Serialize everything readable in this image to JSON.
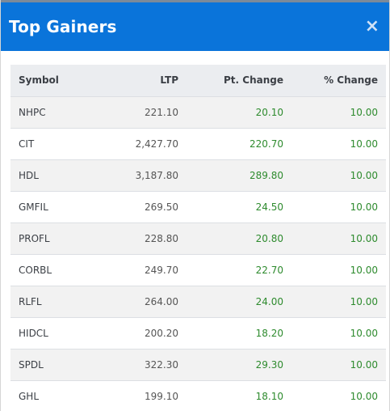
{
  "header": {
    "title": "Top Gainers",
    "close_label": "×"
  },
  "table": {
    "columns": [
      "Symbol",
      "LTP",
      "Pt. Change",
      "% Change"
    ],
    "rows": [
      {
        "symbol": "NHPC",
        "ltp": "221.10",
        "pt_change": "20.10",
        "pct_change": "10.00"
      },
      {
        "symbol": "CIT",
        "ltp": "2,427.70",
        "pt_change": "220.70",
        "pct_change": "10.00"
      },
      {
        "symbol": "HDL",
        "ltp": "3,187.80",
        "pt_change": "289.80",
        "pct_change": "10.00"
      },
      {
        "symbol": "GMFIL",
        "ltp": "269.50",
        "pt_change": "24.50",
        "pct_change": "10.00"
      },
      {
        "symbol": "PROFL",
        "ltp": "228.80",
        "pt_change": "20.80",
        "pct_change": "10.00"
      },
      {
        "symbol": "CORBL",
        "ltp": "249.70",
        "pt_change": "22.70",
        "pct_change": "10.00"
      },
      {
        "symbol": "RLFL",
        "ltp": "264.00",
        "pt_change": "24.00",
        "pct_change": "10.00"
      },
      {
        "symbol": "HIDCL",
        "ltp": "200.20",
        "pt_change": "18.20",
        "pct_change": "10.00"
      },
      {
        "symbol": "SPDL",
        "ltp": "322.30",
        "pt_change": "29.30",
        "pct_change": "10.00"
      },
      {
        "symbol": "GHL",
        "ltp": "199.10",
        "pt_change": "18.10",
        "pct_change": "10.00"
      }
    ]
  },
  "colors": {
    "header_bg": "#0a74da",
    "positive": "#2e8b2e"
  }
}
